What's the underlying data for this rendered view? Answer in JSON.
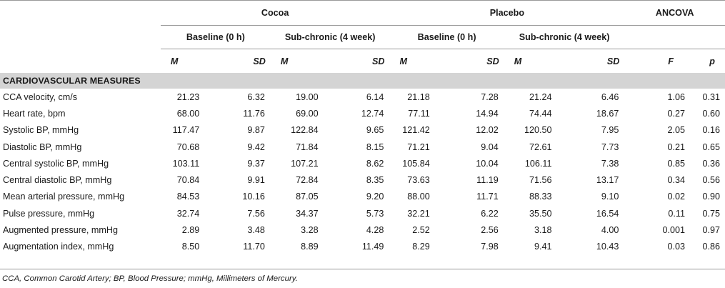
{
  "header": {
    "groups": [
      "Cocoa",
      "Placebo",
      "ANCOVA"
    ],
    "subgroups": [
      "Baseline (0 h)",
      "Sub-chronic (4 week)",
      "Baseline (0 h)",
      "Sub-chronic (4 week)"
    ],
    "stats": [
      "M",
      "SD",
      "M",
      "SD",
      "M",
      "SD",
      "M",
      "SD",
      "F",
      "p"
    ]
  },
  "section_title": "CARDIOVASCULAR MEASURES",
  "rows": [
    {
      "label": "CCA velocity, cm/s",
      "values": [
        "21.23",
        "6.32",
        "19.00",
        "6.14",
        "21.18",
        "7.28",
        "21.24",
        "6.46",
        "1.06",
        "0.31"
      ]
    },
    {
      "label": "Heart rate, bpm",
      "values": [
        "68.00",
        "11.76",
        "69.00",
        "12.74",
        "77.11",
        "14.94",
        "74.44",
        "18.67",
        "0.27",
        "0.60"
      ]
    },
    {
      "label": "Systolic BP, mmHg",
      "values": [
        "117.47",
        "9.87",
        "122.84",
        "9.65",
        "121.42",
        "12.02",
        "120.50",
        "7.95",
        "2.05",
        "0.16"
      ]
    },
    {
      "label": "Diastolic BP, mmHg",
      "values": [
        "70.68",
        "9.42",
        "71.84",
        "8.15",
        "71.21",
        "9.04",
        "72.61",
        "7.73",
        "0.21",
        "0.65"
      ]
    },
    {
      "label": "Central systolic BP, mmHg",
      "values": [
        "103.11",
        "9.37",
        "107.21",
        "8.62",
        "105.84",
        "10.04",
        "106.11",
        "7.38",
        "0.85",
        "0.36"
      ]
    },
    {
      "label": "Central diastolic BP, mmHg",
      "values": [
        "70.84",
        "9.91",
        "72.84",
        "8.35",
        "73.63",
        "11.19",
        "71.56",
        "13.17",
        "0.34",
        "0.56"
      ]
    },
    {
      "label": "Mean arterial pressure, mmHg",
      "values": [
        "84.53",
        "10.16",
        "87.05",
        "9.20",
        "88.00",
        "11.71",
        "88.33",
        "9.10",
        "0.02",
        "0.90"
      ]
    },
    {
      "label": "Pulse pressure, mmHg",
      "values": [
        "32.74",
        "7.56",
        "34.37",
        "5.73",
        "32.21",
        "6.22",
        "35.50",
        "16.54",
        "0.11",
        "0.75"
      ]
    },
    {
      "label": "Augmented pressure, mmHg",
      "values": [
        "2.89",
        "3.48",
        "3.28",
        "4.28",
        "2.52",
        "2.56",
        "3.18",
        "4.00",
        "0.001",
        "0.97"
      ]
    },
    {
      "label": "Augmentation index, mmHg",
      "values": [
        "8.50",
        "11.70",
        "8.89",
        "11.49",
        "8.29",
        "7.98",
        "9.41",
        "10.43",
        "0.03",
        "0.86"
      ]
    }
  ],
  "footnote": "CCA, Common Carotid Artery; BP, Blood Pressure; mmHg, Millimeters of Mercury."
}
